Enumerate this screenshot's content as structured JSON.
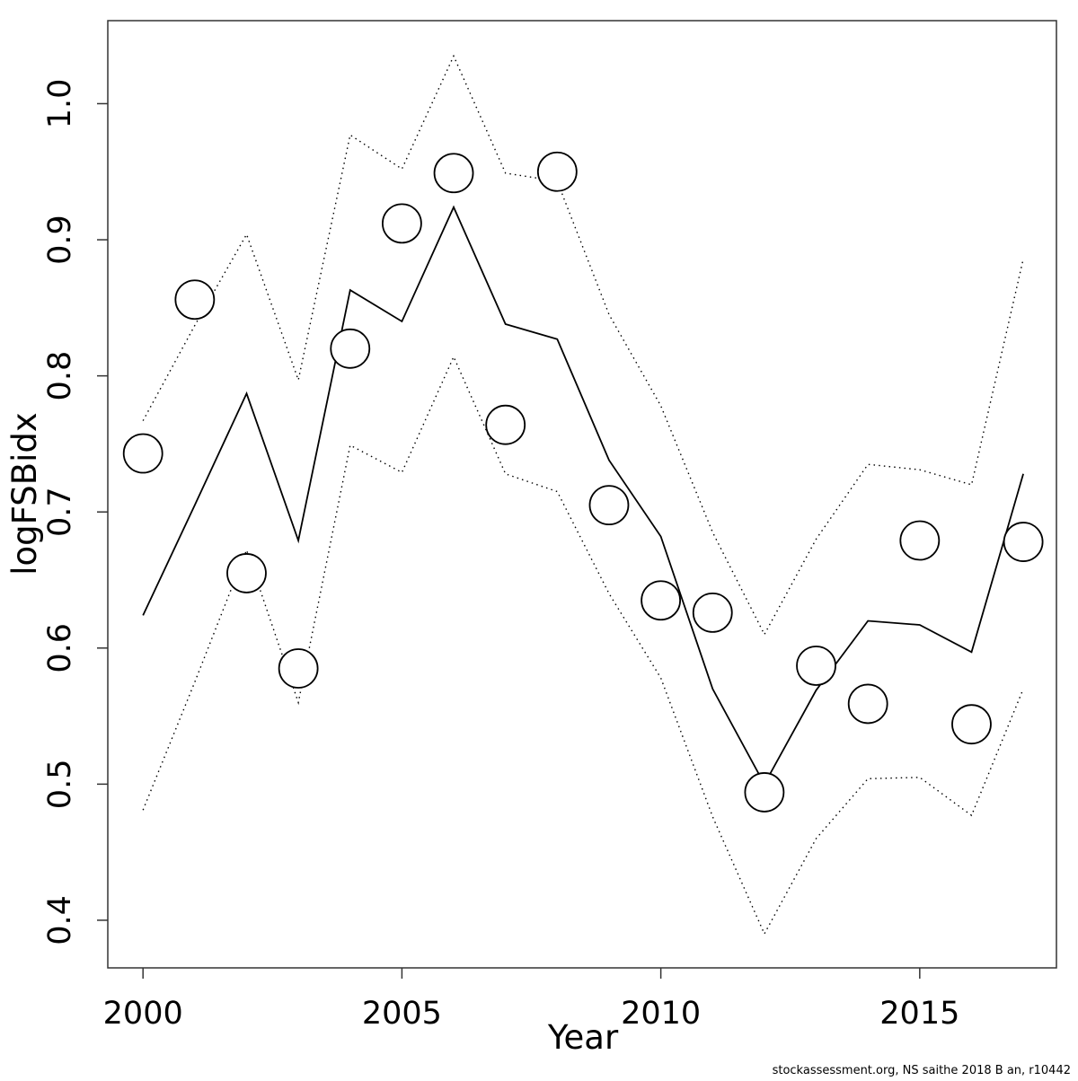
{
  "caption": "stockassessment.org, NS saithe 2018 B an, r10442",
  "chart_data": {
    "type": "line",
    "title": "",
    "xlabel": "Year",
    "ylabel": "logFSBidx",
    "grid": false,
    "legend": "none",
    "xlim": [
      1999.32,
      2017.64
    ],
    "ylim": [
      0.365,
      1.061
    ],
    "x_tick_years": [
      2000,
      2005,
      2010,
      2015
    ],
    "x_tick_labels": [
      "2000",
      "2005",
      "2010",
      "2015"
    ],
    "y_tick_values": [
      0.4,
      0.5,
      0.6,
      0.7,
      0.8,
      0.9,
      1.0
    ],
    "y_tick_labels": [
      "0.4",
      "0.5",
      "0.6",
      "0.7",
      "0.8",
      "0.9",
      "1.0"
    ],
    "x": [
      2000,
      2001,
      2002,
      2003,
      2004,
      2005,
      2006,
      2007,
      2008,
      2009,
      2010,
      2011,
      2012,
      2013,
      2014,
      2015,
      2016,
      2017
    ],
    "series": [
      {
        "name": "fitted",
        "style": "solid-line",
        "values": [
          0.624,
          0.705,
          0.787,
          0.679,
          0.863,
          0.84,
          0.924,
          0.838,
          0.827,
          0.738,
          0.682,
          0.57,
          0.5,
          0.569,
          0.62,
          0.617,
          0.597,
          0.728
        ]
      },
      {
        "name": "upper-confidence-band",
        "style": "dotted-line",
        "values": [
          0.767,
          0.837,
          0.904,
          0.797,
          0.977,
          0.952,
          1.035,
          0.949,
          0.943,
          0.845,
          0.778,
          0.685,
          0.61,
          0.68,
          0.735,
          0.731,
          0.72,
          0.886
        ]
      },
      {
        "name": "lower-confidence-band",
        "style": "dotted-line",
        "values": [
          0.481,
          0.575,
          0.672,
          0.56,
          0.749,
          0.729,
          0.814,
          0.728,
          0.715,
          0.64,
          0.578,
          0.476,
          0.39,
          0.46,
          0.504,
          0.505,
          0.477,
          0.57
        ]
      },
      {
        "name": "observations",
        "style": "open-circles",
        "values": [
          0.743,
          0.856,
          0.655,
          0.585,
          0.82,
          0.912,
          0.949,
          0.764,
          0.95,
          0.705,
          0.635,
          0.626,
          0.494,
          0.587,
          0.559,
          0.679,
          0.544,
          0.678
        ]
      }
    ],
    "colors": {
      "line": "#000000",
      "band": "#000000",
      "points": "#000000",
      "box": "#333333",
      "background": "#ffffff"
    }
  }
}
